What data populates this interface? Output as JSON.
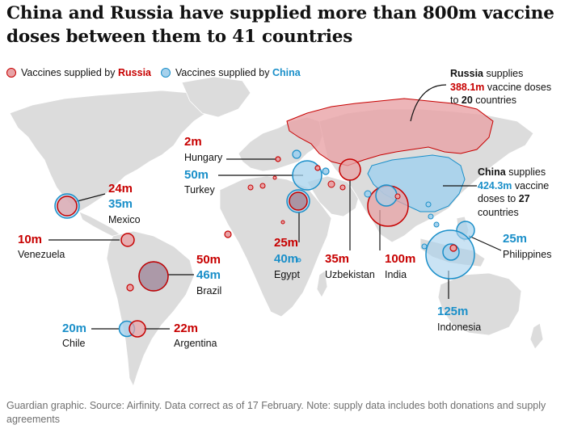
{
  "title": "China and Russia have supplied more than 800m vaccine doses between them to 41 countries",
  "legend": {
    "russia_prefix": "Vaccines supplied by ",
    "russia_name": "Russia",
    "china_prefix": "Vaccines supplied by ",
    "china_name": "China"
  },
  "colors": {
    "russia_stroke": "#c70000",
    "russia_fill": "#e8a3a6",
    "china_stroke": "#1a8fc9",
    "china_fill": "#a6d1ec",
    "land": "#dcdcdc"
  },
  "russia_note": {
    "country": "Russia",
    "text1": " supplies",
    "amount": "388.1m",
    "text2": " vaccine doses",
    "text3": "to ",
    "count": "20",
    "text4": " countries"
  },
  "china_note": {
    "country": "China",
    "text1": " supplies",
    "amount": "424.3m",
    "text2": " vaccine",
    "text3": "doses to ",
    "count": "27",
    "text4": "countries"
  },
  "countries": [
    {
      "name": "Hungary",
      "russia": "2m"
    },
    {
      "name": "Turkey",
      "china": "50m"
    },
    {
      "name": "Mexico",
      "russia": "24m",
      "china": "35m"
    },
    {
      "name": "Venezuela",
      "russia": "10m"
    },
    {
      "name": "Brazil",
      "russia": "50m",
      "china": "46m"
    },
    {
      "name": "Egypt",
      "russia": "25m",
      "china": "40m"
    },
    {
      "name": "Uzbekistan",
      "russia": "35m"
    },
    {
      "name": "India",
      "russia": "100m"
    },
    {
      "name": "Philippines",
      "china": "25m"
    },
    {
      "name": "Indonesia",
      "china": "125m"
    },
    {
      "name": "Chile",
      "china": "20m"
    },
    {
      "name": "Argentina",
      "russia": "22m"
    }
  ],
  "footnote": "Guardian graphic. Source: Airfinity. Data correct as of 17 February. Note: supply data includes both donations and supply agreements"
}
